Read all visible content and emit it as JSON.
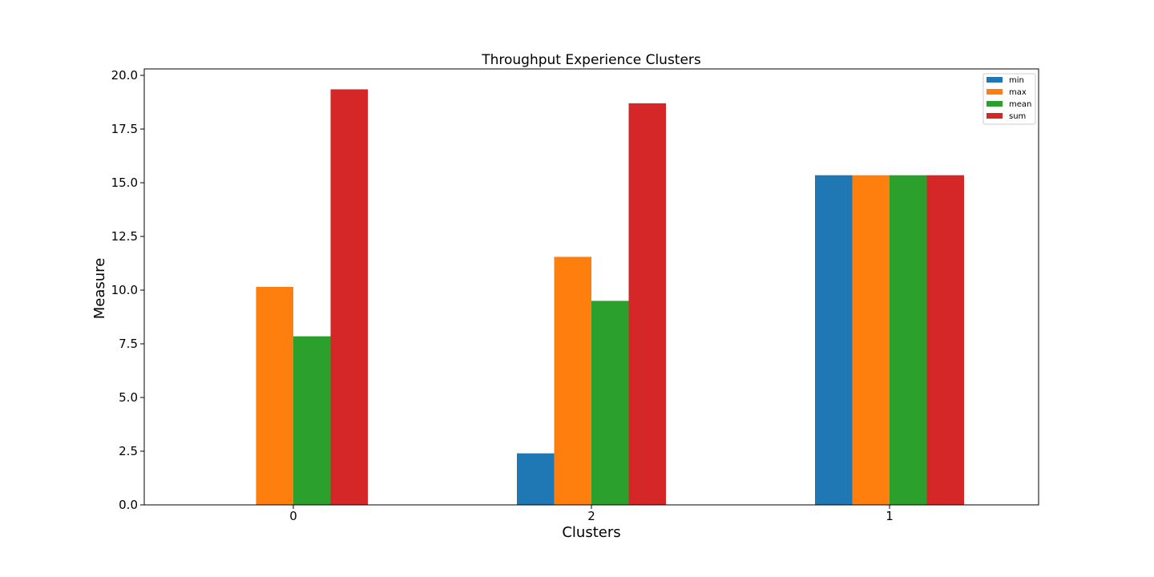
{
  "chart_data": {
    "type": "bar",
    "title": "Throughput Experience Clusters",
    "xlabel": "Clusters",
    "ylabel": "Measure",
    "categories": [
      "0",
      "2",
      "1"
    ],
    "series": [
      {
        "name": "min",
        "color": "#1f77b4",
        "values": [
          0.0,
          2.4,
          15.35
        ]
      },
      {
        "name": "max",
        "color": "#ff7f0e",
        "values": [
          10.15,
          11.55,
          15.35
        ]
      },
      {
        "name": "mean",
        "color": "#2ca02c",
        "values": [
          7.85,
          9.5,
          15.35
        ]
      },
      {
        "name": "sum",
        "color": "#d62728",
        "values": [
          19.35,
          18.7,
          15.35
        ]
      }
    ],
    "ylim": [
      0,
      20.3
    ],
    "yticks": [
      "0.0",
      "2.5",
      "5.0",
      "7.5",
      "10.0",
      "12.5",
      "15.0",
      "17.5",
      "20.0"
    ],
    "grid": false,
    "legend_position": "top-right"
  }
}
